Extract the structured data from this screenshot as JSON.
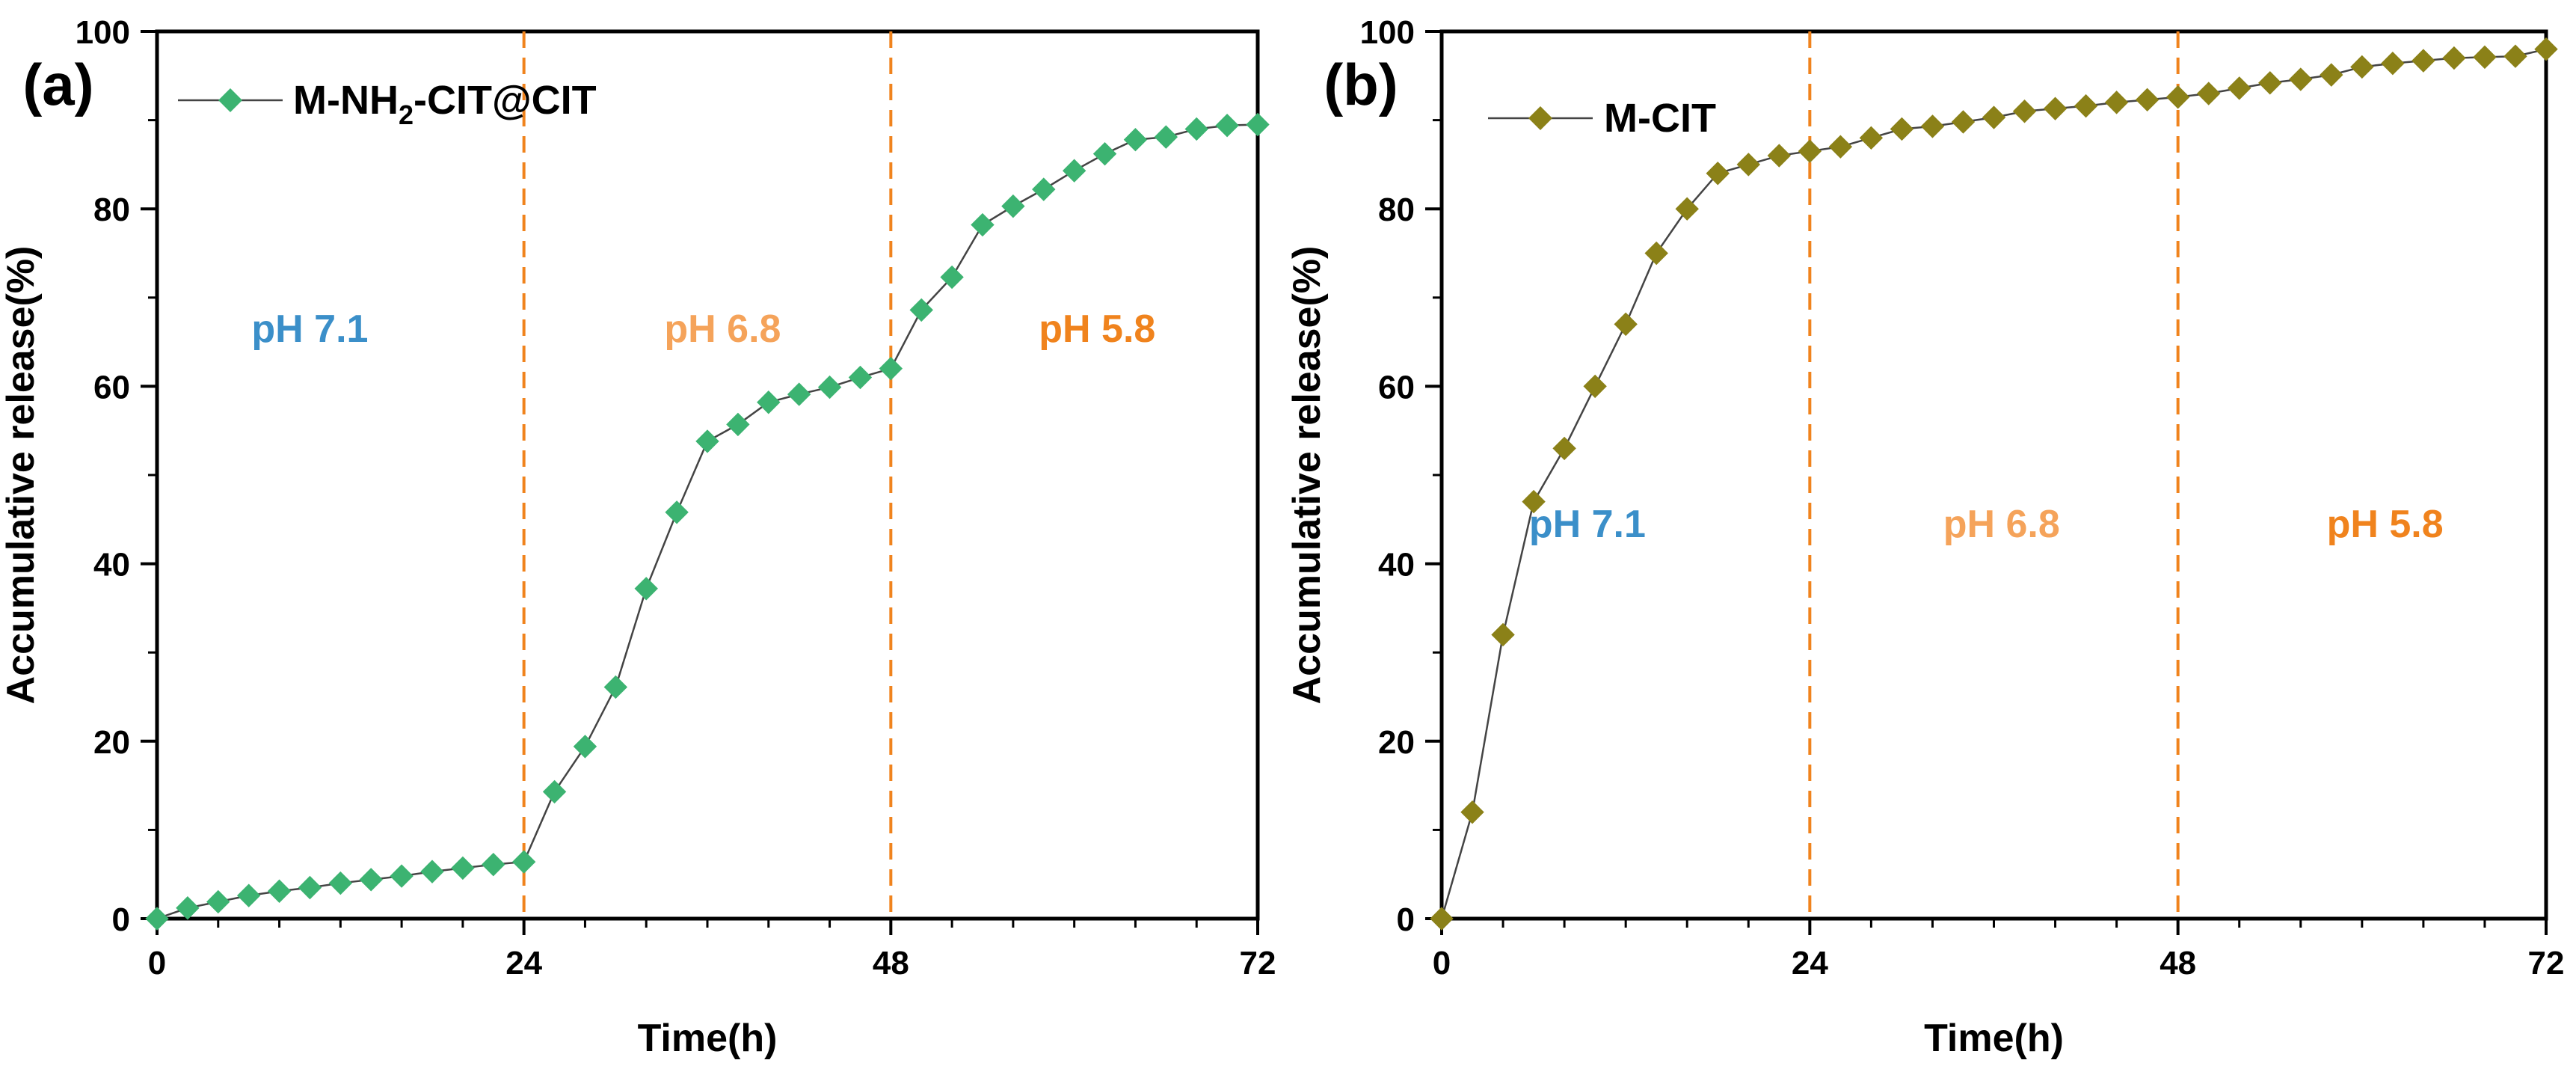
{
  "chart_data": [
    {
      "panel_label": "(a)",
      "type": "line",
      "title": "",
      "xlabel": "Time(h)",
      "ylabel": "Accumulative release(%)",
      "xlim": [
        0,
        72
      ],
      "ylim": [
        0,
        100
      ],
      "xticks": [
        0,
        24,
        48,
        72
      ],
      "yticks": [
        0,
        20,
        40,
        60,
        80,
        100
      ],
      "vlines": [
        24,
        48
      ],
      "grid": false,
      "legend": {
        "main": "M-NH",
        "sub": "2",
        "rest": "-CIT@CIT",
        "placement": "top-left"
      },
      "marker_color": "#3cb371",
      "line_color": "#444444",
      "series": [
        {
          "name": "M-NH2-CIT@CIT",
          "x": [
            0,
            2,
            4,
            6,
            8,
            10,
            12,
            14,
            16,
            18,
            20,
            22,
            24,
            26,
            28,
            30,
            32,
            34,
            36,
            38,
            40,
            42,
            44,
            46,
            48,
            50,
            52,
            54,
            56,
            58,
            60,
            62,
            64,
            66,
            68,
            70,
            72
          ],
          "y": [
            0,
            1.2,
            1.9,
            2.6,
            3.1,
            3.5,
            4.0,
            4.4,
            4.8,
            5.3,
            5.7,
            6.1,
            6.4,
            14.3,
            19.4,
            26.1,
            37.2,
            45.8,
            53.8,
            55.7,
            58.2,
            59.1,
            59.9,
            61.0,
            62.0,
            68.6,
            72.3,
            78.2,
            80.3,
            82.2,
            84.3,
            86.2,
            87.8,
            88.1,
            89.0,
            89.4,
            89.5
          ]
        }
      ],
      "annotations": [
        {
          "text": "pH 7.1",
          "x": 10,
          "y": 65,
          "color": "#3b8fc9"
        },
        {
          "text": "pH 6.8",
          "x": 37,
          "y": 65,
          "color": "#f5a35a"
        },
        {
          "text": "pH 5.8",
          "x": 61.5,
          "y": 65,
          "color": "#f0831d"
        }
      ]
    },
    {
      "panel_label": "(b)",
      "type": "line",
      "title": "",
      "xlabel": "Time(h)",
      "ylabel": "Accumulative release(%)",
      "xlim": [
        0,
        72
      ],
      "ylim": [
        0,
        100
      ],
      "xticks": [
        0,
        24,
        48,
        72
      ],
      "yticks": [
        0,
        20,
        40,
        60,
        80,
        100
      ],
      "vlines": [
        24,
        48
      ],
      "grid": false,
      "legend": {
        "main": "M-CIT",
        "sub": "",
        "rest": "",
        "placement": "top-left"
      },
      "marker_color": "#8b8118",
      "line_color": "#444444",
      "series": [
        {
          "name": "M-CIT",
          "x": [
            0,
            2,
            4,
            6,
            8,
            10,
            12,
            14,
            16,
            18,
            20,
            22,
            24,
            26,
            28,
            30,
            32,
            34,
            36,
            38,
            40,
            42,
            44,
            46,
            48,
            50,
            52,
            54,
            56,
            58,
            60,
            62,
            64,
            66,
            68,
            70,
            72
          ],
          "y": [
            0,
            12,
            32,
            47,
            53,
            60,
            67,
            75,
            80,
            84,
            85,
            86,
            86.5,
            87,
            88,
            89,
            89.3,
            89.8,
            90.3,
            91,
            91.3,
            91.6,
            92,
            92.3,
            92.6,
            93,
            93.6,
            94.2,
            94.6,
            95.1,
            96,
            96.4,
            96.7,
            97,
            97.1,
            97.2,
            98
          ]
        }
      ],
      "annotations": [
        {
          "text": "pH 7.1",
          "x": 9.5,
          "y": 43,
          "color": "#3b8fc9"
        },
        {
          "text": "pH 6.8",
          "x": 36.5,
          "y": 43,
          "color": "#f5a35a"
        },
        {
          "text": "pH 5.8",
          "x": 61.5,
          "y": 43,
          "color": "#f0831d"
        }
      ]
    }
  ]
}
